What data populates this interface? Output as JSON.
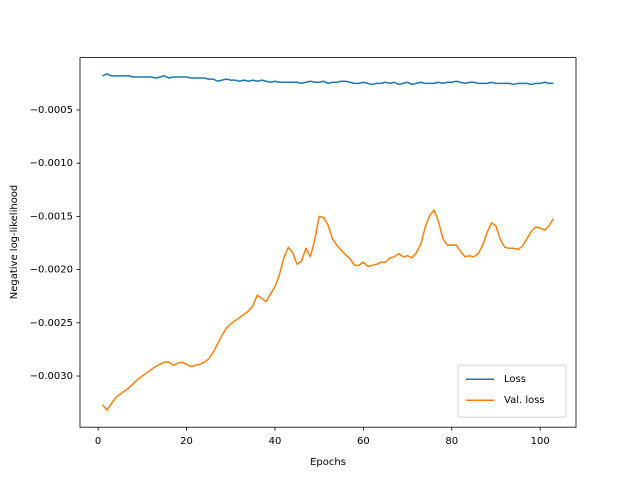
{
  "chart_data": {
    "type": "line",
    "x_label": "Epochs",
    "y_label": "Negative log-likelihood",
    "x": [
      1,
      2,
      3,
      4,
      5,
      6,
      7,
      8,
      9,
      10,
      11,
      12,
      13,
      14,
      15,
      16,
      17,
      18,
      19,
      20,
      21,
      22,
      23,
      24,
      25,
      26,
      27,
      28,
      29,
      30,
      31,
      32,
      33,
      34,
      35,
      36,
      37,
      38,
      39,
      40,
      41,
      42,
      43,
      44,
      45,
      46,
      47,
      48,
      49,
      50,
      51,
      52,
      53,
      54,
      55,
      56,
      57,
      58,
      59,
      60,
      61,
      62,
      63,
      64,
      65,
      66,
      67,
      68,
      69,
      70,
      71,
      72,
      73,
      74,
      75,
      76,
      77,
      78,
      79,
      80,
      81,
      82,
      83,
      84,
      85,
      86,
      87,
      88,
      89,
      90,
      91,
      92,
      93,
      94,
      95,
      96,
      97,
      98,
      99,
      100,
      101,
      102,
      103
    ],
    "series": [
      {
        "name": "Loss",
        "color": "#1f77b4",
        "values": [
          -0.00018,
          -0.00016,
          -0.00018,
          -0.00018,
          -0.00018,
          -0.00018,
          -0.00018,
          -0.00019,
          -0.00019,
          -0.00019,
          -0.00019,
          -0.00019,
          -0.0002,
          -0.00019,
          -0.00018,
          -0.0002,
          -0.00019,
          -0.00019,
          -0.00019,
          -0.00019,
          -0.0002,
          -0.0002,
          -0.0002,
          -0.0002,
          -0.00021,
          -0.00021,
          -0.00023,
          -0.00022,
          -0.00021,
          -0.00022,
          -0.00022,
          -0.00023,
          -0.00022,
          -0.00023,
          -0.00022,
          -0.00023,
          -0.00022,
          -0.00023,
          -0.00024,
          -0.00023,
          -0.00024,
          -0.00024,
          -0.00024,
          -0.00024,
          -0.00024,
          -0.00025,
          -0.00024,
          -0.00023,
          -0.00024,
          -0.00024,
          -0.00023,
          -0.00025,
          -0.00024,
          -0.00024,
          -0.00023,
          -0.00023,
          -0.00024,
          -0.00025,
          -0.00025,
          -0.00024,
          -0.00025,
          -0.00026,
          -0.00025,
          -0.00025,
          -0.00024,
          -0.00025,
          -0.00024,
          -0.00026,
          -0.00025,
          -0.00024,
          -0.00026,
          -0.00025,
          -0.00024,
          -0.00025,
          -0.00025,
          -0.00025,
          -0.00024,
          -0.00025,
          -0.00024,
          -0.00024,
          -0.00023,
          -0.00024,
          -0.00025,
          -0.00024,
          -0.00024,
          -0.00025,
          -0.00025,
          -0.00025,
          -0.00024,
          -0.00025,
          -0.00025,
          -0.00025,
          -0.00025,
          -0.00026,
          -0.00025,
          -0.00025,
          -0.00025,
          -0.00026,
          -0.00025,
          -0.00025,
          -0.00024,
          -0.00025,
          -0.00025
        ]
      },
      {
        "name": "Val. loss",
        "color": "#ff7f0e",
        "values": [
          -0.00327,
          -0.00332,
          -0.00326,
          -0.0032,
          -0.00317,
          -0.00314,
          -0.00311,
          -0.00307,
          -0.00303,
          -0.003,
          -0.00297,
          -0.00294,
          -0.00291,
          -0.00289,
          -0.00287,
          -0.00287,
          -0.0029,
          -0.00288,
          -0.00287,
          -0.00289,
          -0.00291,
          -0.0029,
          -0.00289,
          -0.00287,
          -0.00284,
          -0.00278,
          -0.0027,
          -0.00262,
          -0.00255,
          -0.00251,
          -0.00248,
          -0.00245,
          -0.00242,
          -0.00239,
          -0.00234,
          -0.00224,
          -0.00227,
          -0.0023,
          -0.00223,
          -0.00216,
          -0.00205,
          -0.00189,
          -0.00179,
          -0.00184,
          -0.00195,
          -0.00192,
          -0.0018,
          -0.00188,
          -0.00172,
          -0.0015,
          -0.00151,
          -0.00158,
          -0.00171,
          -0.00177,
          -0.00182,
          -0.00186,
          -0.0019,
          -0.00196,
          -0.00196,
          -0.00193,
          -0.00197,
          -0.00196,
          -0.00195,
          -0.00193,
          -0.00193,
          -0.00189,
          -0.00188,
          -0.00185,
          -0.00188,
          -0.00187,
          -0.00189,
          -0.00184,
          -0.00176,
          -0.0016,
          -0.00149,
          -0.00144,
          -0.00155,
          -0.00171,
          -0.00177,
          -0.00177,
          -0.00177,
          -0.00183,
          -0.00188,
          -0.00187,
          -0.00188,
          -0.00185,
          -0.00177,
          -0.00165,
          -0.00156,
          -0.00159,
          -0.00172,
          -0.00179,
          -0.0018,
          -0.0018,
          -0.00181,
          -0.00178,
          -0.00171,
          -0.00164,
          -0.0016,
          -0.00161,
          -0.00163,
          -0.00159,
          -0.00152
        ]
      }
    ],
    "xlim": [
      -4.1,
      108.1
    ],
    "ylim": [
      -0.003481,
      -8e-06
    ],
    "xticks": [
      0,
      20,
      40,
      60,
      80,
      100
    ],
    "yticks": [
      {
        "value": -0.0005,
        "label": "−0.0005"
      },
      {
        "value": -0.001,
        "label": "−0.0010"
      },
      {
        "value": -0.0015,
        "label": "−0.0015"
      },
      {
        "value": -0.002,
        "label": "−0.0020"
      },
      {
        "value": -0.0025,
        "label": "−0.0025"
      },
      {
        "value": -0.003,
        "label": "−0.0030"
      }
    ],
    "grid": false,
    "legend": "lower right"
  }
}
